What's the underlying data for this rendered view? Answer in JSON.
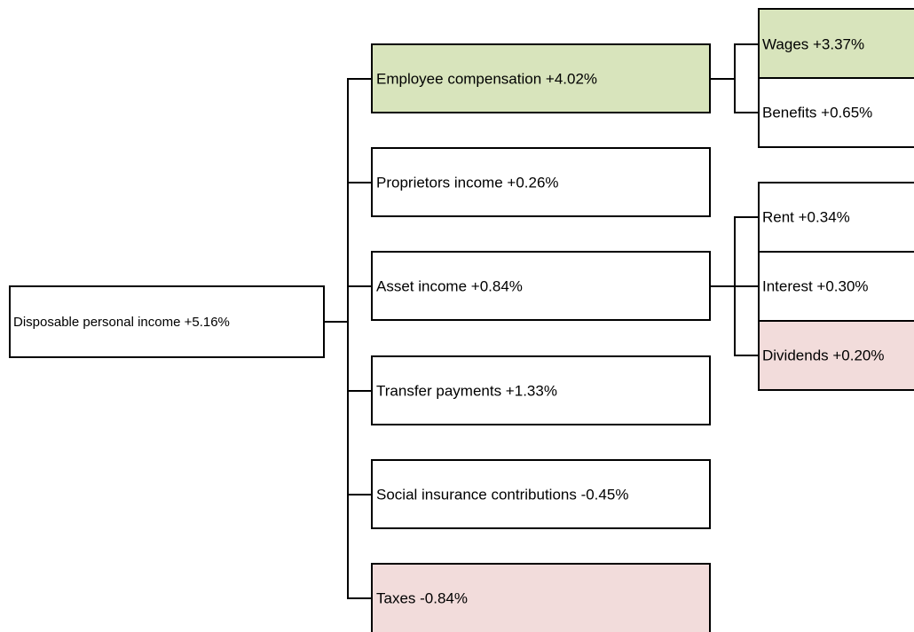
{
  "nodes": [
    {
      "label": "Disposable personal income +5.16%"
    },
    {
      "label": "Employee compensation +4.02%"
    },
    {
      "label": "Proprietors income +0.26%"
    },
    {
      "label": "Asset income +0.84%"
    },
    {
      "label": "Transfer payments +1.33%"
    },
    {
      "label": "Social insurance contributions -0.45%"
    },
    {
      "label": "Taxes -0.84%"
    },
    {
      "label": "Wages +3.37%"
    },
    {
      "label": "Benefits +0.65%"
    },
    {
      "label": "Rent +0.34%"
    },
    {
      "label": "Interest +0.30%"
    },
    {
      "label": "Dividends +0.20%"
    }
  ]
}
